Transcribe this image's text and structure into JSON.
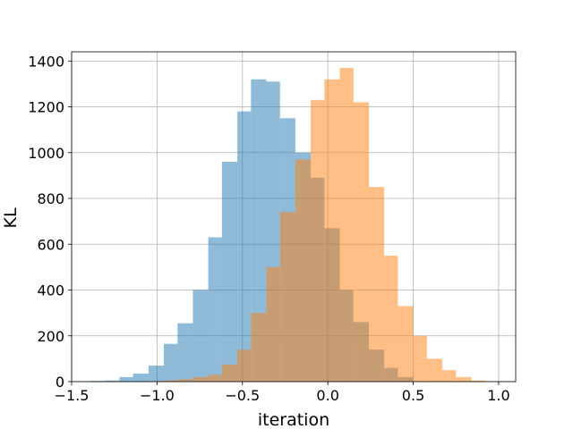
{
  "chart_data": {
    "type": "histogram",
    "title": "",
    "xlabel": "iteration",
    "ylabel": "KL",
    "xlim": [
      -1.5,
      1.1
    ],
    "ylim": [
      0,
      1440
    ],
    "grid": true,
    "xticks": [
      -1.5,
      -1.0,
      -0.5,
      0.0,
      0.5,
      1.0
    ],
    "xtick_labels": [
      "−1.5",
      "−1.0",
      "−0.5",
      "0.0",
      "0.5",
      "1.0"
    ],
    "yticks": [
      0,
      200,
      400,
      600,
      800,
      1000,
      1200,
      1400
    ],
    "ytick_labels": [
      "0",
      "200",
      "400",
      "600",
      "800",
      "1000",
      "1200",
      "1400"
    ],
    "series": [
      {
        "color": "#1f77b4",
        "opacity": 0.5,
        "bin_edges": [
          -1.39,
          -1.3,
          -1.22,
          -1.14,
          -1.05,
          -0.96,
          -0.88,
          -0.79,
          -0.7,
          -0.62,
          -0.53,
          -0.45,
          -0.36,
          -0.28,
          -0.19,
          -0.1,
          -0.02,
          0.07,
          0.15,
          0.24,
          0.33,
          0.41,
          0.5
        ],
        "counts": [
          3,
          5,
          20,
          35,
          70,
          165,
          255,
          400,
          630,
          960,
          1180,
          1320,
          1310,
          1150,
          1000,
          890,
          670,
          400,
          260,
          140,
          60,
          20
        ]
      },
      {
        "color": "#ff7f0e",
        "opacity": 0.5,
        "bin_edges": [
          -1.05,
          -0.96,
          -0.88,
          -0.79,
          -0.7,
          -0.62,
          -0.53,
          -0.45,
          -0.36,
          -0.28,
          -0.19,
          -0.1,
          -0.02,
          0.07,
          0.15,
          0.24,
          0.33,
          0.41,
          0.5,
          0.58,
          0.67,
          0.75,
          0.84,
          0.92,
          1.0
        ],
        "counts": [
          2,
          5,
          10,
          20,
          30,
          75,
          140,
          300,
          500,
          740,
          970,
          1230,
          1320,
          1370,
          1220,
          850,
          550,
          330,
          200,
          100,
          50,
          20,
          5,
          1
        ]
      }
    ]
  }
}
